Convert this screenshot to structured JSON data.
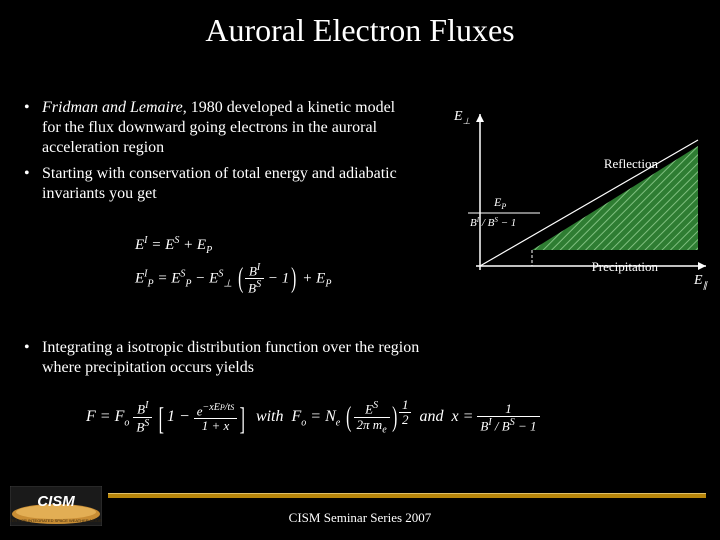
{
  "title": "Auroral Electron Fluxes",
  "bullets": [
    {
      "pre_italic": "Fridman and Lemaire",
      "rest": ", 1980 developed a kinetic model for the flux downward going electrons in the auroral acceleration region"
    },
    {
      "pre_italic": "",
      "rest": "Starting with conservation of total energy and adiabatic invariants you get"
    }
  ],
  "eq1_line1_html": "E<span class='sup'>I</span> = E<span class='sup'>S</span> + E<span class='sub'>P</span>",
  "eq1_line2_html": "E<span class='sup'>I</span><span class='sub'>P</span> = E<span class='sup'>S</span><span class='sub'>P</span> − E<span class='sup'>S</span><span class='sub'>⊥</span> <span class='big-paren'>(</span><span class='frac'><span class='num'>B<span class=\"sup\">I</span></span><span class='den'>B<span class=\"sup\">S</span></span></span> − 1<span class='big-paren'>)</span> + E<span class='sub'>P</span>",
  "bullets2": [
    {
      "rest": "Integrating a isotropic distribution function over the region where precipitation occurs yields"
    }
  ],
  "eq2_html": "F = F<span class='sub'>o</span> <span class='frac'><span class='num'>B<span class=\"sup\">I</span></span><span class='den'>B<span class=\"sup\">S</span></span></span> <span class='big-bracket'>[</span>1 − <span class='frac'><span class='num'>e<span class=\"sup\">−xE<span style=\"font-size:8px\">P</span>/t<span style=\"font-size:8px\">S</span></span></span><span class='den'>1 + x</span></span><span class='big-bracket'>]</span> &nbsp;with&nbsp; F<span class='sub'>o</span> = N<span class='sub'>e</span> <span class='big-paren'>(</span><span class='frac'><span class='num'>E<span class=\"sup\">S</span></span><span class='den'>2π m<span class=\"sub\">e</span></span></span><span class='big-paren'>)</span><span class='sup' style='font-size:9px'><span class=\"frac\"><span class=\"num\">1</span><span class=\"den\">2</span></span></span> &nbsp;and&nbsp; x = <span class='frac'><span class='num'>1</span><span class='den'>B<span class=\"sup\">I</span> / B<span class=\"sup\">S</span> − 1</span></span>",
  "diagram": {
    "y_axis_label": "E⊥",
    "x_axis_label": "E∥",
    "mid_label_top": "E_P",
    "mid_label_bot": "B^I / B^S − 1",
    "region_color": "#2e7d32",
    "hatch_color": "#7fbf7f",
    "axis_color": "#ffffff",
    "reflect_label": "Reflection",
    "precip_label": "Precipitation"
  },
  "footer": "CISM Seminar Series 2007",
  "logo": {
    "text": "CISM",
    "bg1": "#2a2a2a",
    "bg2": "#e8a23a",
    "text_color": "#ffffff"
  },
  "footer_bar_color": "#b8860b"
}
